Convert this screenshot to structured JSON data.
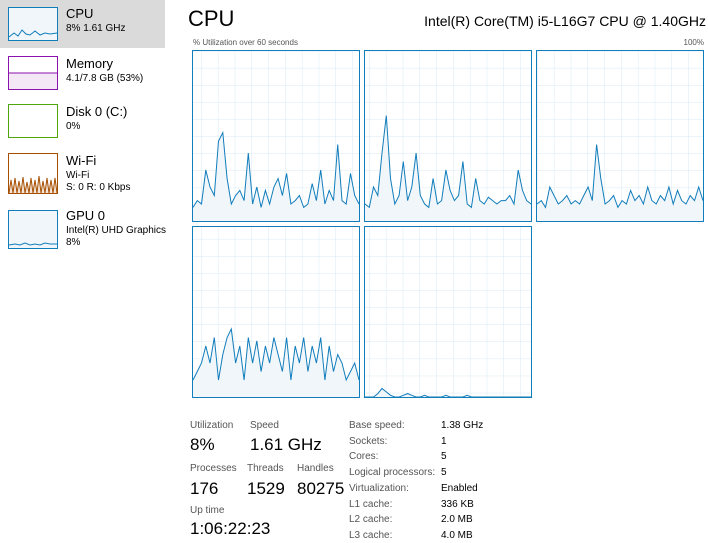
{
  "sidebar": [
    {
      "title": "CPU",
      "details": [
        "8% 1.61 GHz"
      ]
    },
    {
      "title": "Memory",
      "details": [
        "4.1/7.8 GB (53%)"
      ]
    },
    {
      "title": "Disk 0 (C:)",
      "details": [
        "0%"
      ]
    },
    {
      "title": "Wi-Fi",
      "details": [
        "Wi-Fi",
        "S: 0 R: 0 Kbps"
      ]
    },
    {
      "title": "GPU 0",
      "details": [
        "Intel(R) UHD Graphics",
        "8%"
      ]
    }
  ],
  "header": {
    "title": "CPU",
    "processor": "Intel(R) Core(TM) i5-L16G7 CPU @ 1.40GHz"
  },
  "graph": {
    "caption": "% Utilization over 60 seconds",
    "max_label": "100%",
    "cores": [
      {
        "values": [
          8,
          12,
          10,
          30,
          20,
          15,
          47,
          52,
          25,
          10,
          15,
          18,
          12,
          40,
          10,
          20,
          8,
          18,
          10,
          20,
          25,
          15,
          28,
          10,
          12,
          15,
          8,
          10,
          22,
          12,
          30,
          10,
          18,
          12,
          45,
          12,
          10,
          28,
          15,
          10
        ]
      },
      {
        "values": [
          10,
          8,
          20,
          15,
          40,
          62,
          25,
          10,
          15,
          35,
          12,
          20,
          40,
          15,
          10,
          8,
          25,
          10,
          12,
          30,
          18,
          12,
          15,
          35,
          10,
          8,
          25,
          12,
          10,
          14,
          12,
          10,
          12,
          12,
          15,
          10,
          30,
          18,
          12,
          10
        ]
      },
      {
        "values": [
          10,
          12,
          8,
          20,
          15,
          10,
          12,
          15,
          10,
          12,
          10,
          15,
          20,
          12,
          45,
          25,
          10,
          12,
          15,
          8,
          12,
          10,
          18,
          12,
          15,
          10,
          20,
          12,
          10,
          15,
          12,
          20,
          10,
          18,
          12,
          10,
          15,
          12,
          20,
          12
        ]
      },
      {
        "values": [
          10,
          15,
          20,
          30,
          20,
          35,
          10,
          25,
          35,
          40,
          20,
          30,
          10,
          35,
          20,
          33,
          15,
          30,
          20,
          35,
          25,
          15,
          35,
          10,
          30,
          20,
          35,
          15,
          30,
          20,
          35,
          10,
          30,
          15,
          25,
          20,
          10,
          15,
          20,
          10
        ]
      },
      {
        "values": [
          0,
          0,
          0,
          2,
          5,
          3,
          1,
          0,
          0,
          1,
          2,
          1,
          0,
          0,
          1,
          0,
          0,
          0,
          0,
          1,
          0,
          0,
          0,
          0,
          1,
          0,
          0,
          0,
          0,
          0,
          0,
          0,
          0,
          0,
          0,
          0,
          0,
          0,
          0,
          0
        ]
      }
    ]
  },
  "stats": {
    "utilization": {
      "label": "Utilization",
      "value": "8%"
    },
    "speed": {
      "label": "Speed",
      "value": "1.61 GHz"
    },
    "processes": {
      "label": "Processes",
      "value": "176"
    },
    "threads": {
      "label": "Threads",
      "value": "1529"
    },
    "handles": {
      "label": "Handles",
      "value": "80275"
    },
    "uptime": {
      "label": "Up time",
      "value": "1:06:22:23"
    }
  },
  "specs": [
    {
      "label": "Base speed:",
      "value": "1.38 GHz"
    },
    {
      "label": "Sockets:",
      "value": "1"
    },
    {
      "label": "Cores:",
      "value": "5"
    },
    {
      "label": "Logical processors:",
      "value": "5"
    },
    {
      "label": "Virtualization:",
      "value": "Enabled"
    },
    {
      "label": "L1 cache:",
      "value": "336 KB"
    },
    {
      "label": "L2 cache:",
      "value": "2.0 MB"
    },
    {
      "label": "L3 cache:",
      "value": "4.0 MB"
    }
  ]
}
